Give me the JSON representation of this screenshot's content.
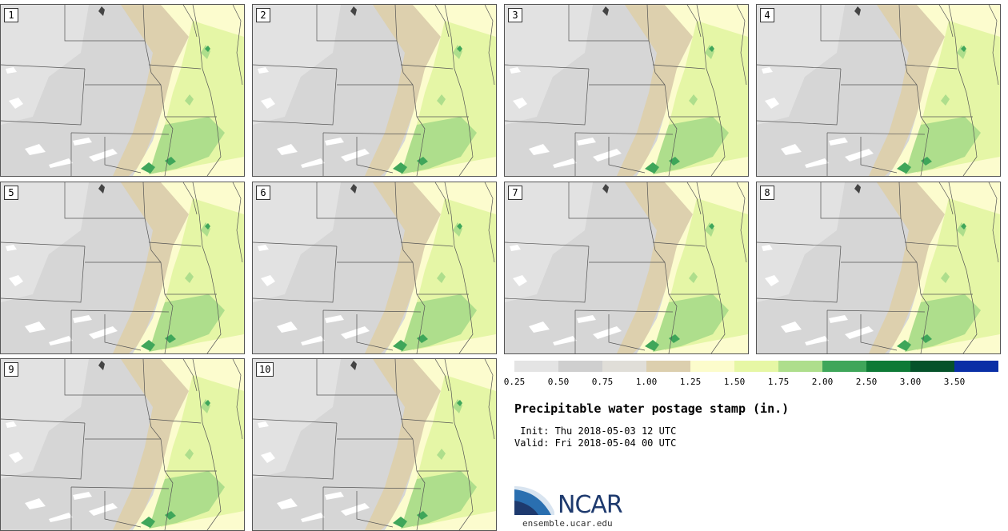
{
  "panels": [
    "1",
    "2",
    "3",
    "4",
    "5",
    "6",
    "7",
    "8",
    "9",
    "10"
  ],
  "colorbar": {
    "tick_labels": [
      "0.25",
      "0.50",
      "0.75",
      "1.00",
      "1.25",
      "1.50",
      "1.75",
      "2.00",
      "2.50",
      "3.00",
      "3.50"
    ],
    "colors": [
      "#e4e4e4",
      "#cfcfcf",
      "#e0ded8",
      "#dccfae",
      "#fcfccc",
      "#e6f7a5",
      "#aede8c",
      "#3fa65a",
      "#0e7a36",
      "#05522a",
      "#0a2fa6"
    ]
  },
  "title": "Precipitable water postage stamp (in.)",
  "init_line": " Init: Thu 2018-05-03 12 UTC",
  "valid_line": "Valid: Fri 2018-05-04 00 UTC",
  "logo": {
    "text": "NCAR",
    "site": "ensemble.ucar.edu",
    "color": "#1e3a6e",
    "swoosh_color": "#2a6fb0"
  }
}
